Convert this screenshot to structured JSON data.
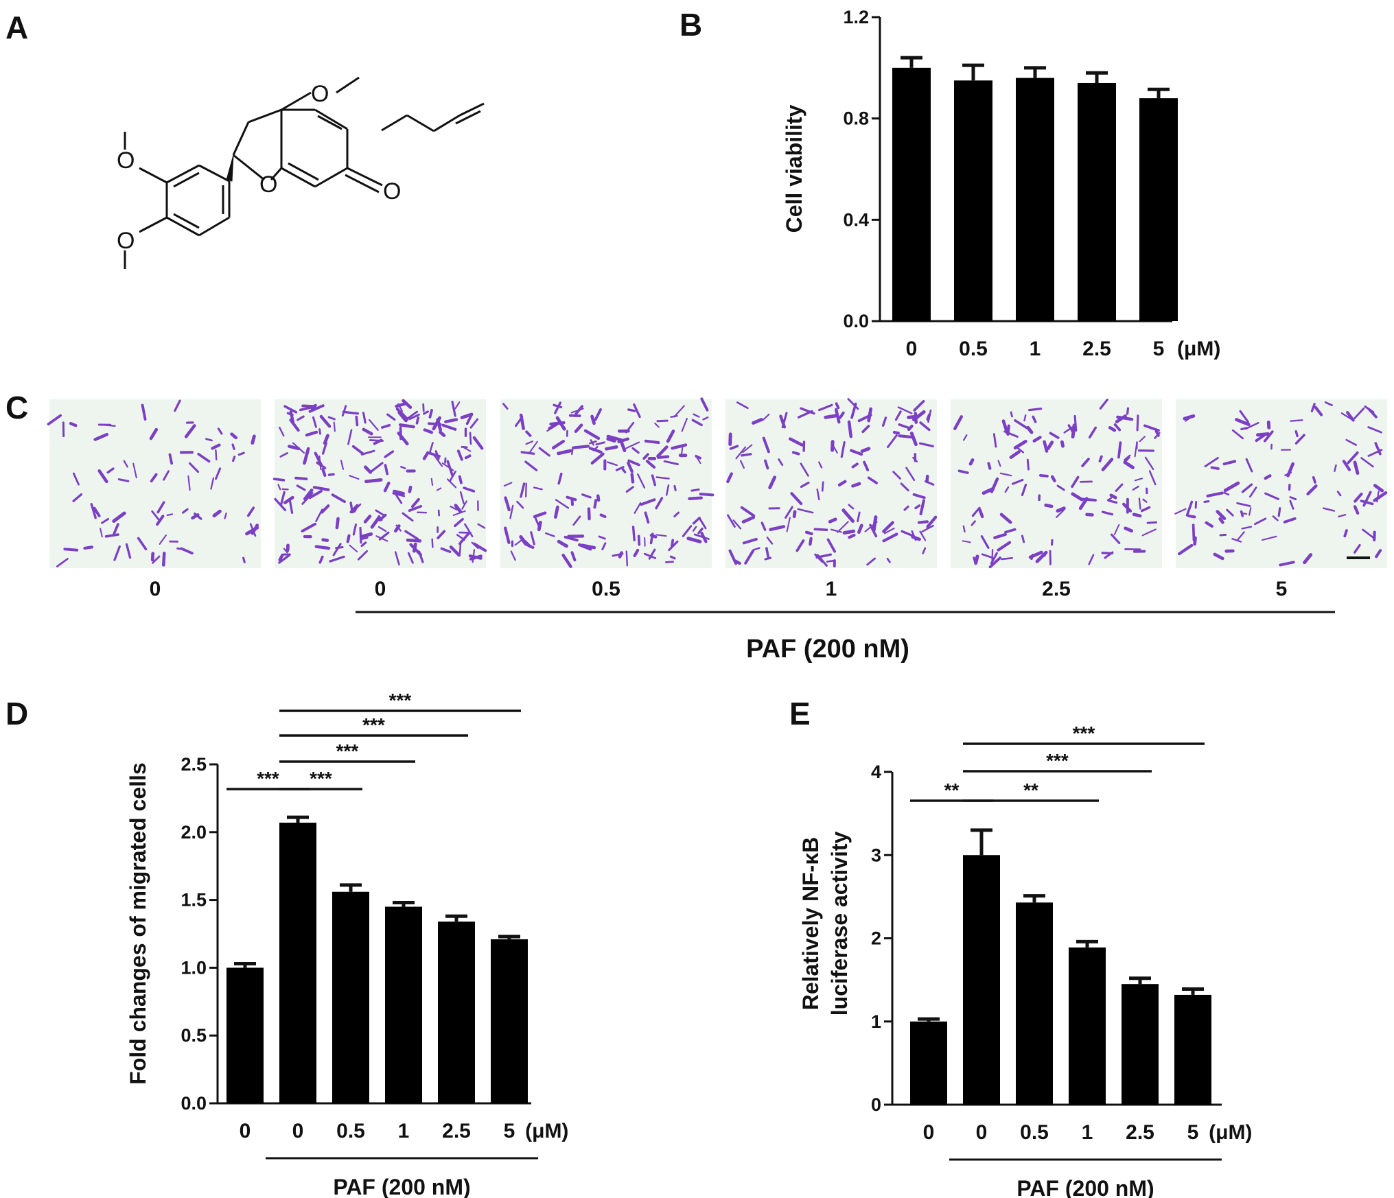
{
  "panels": {
    "A": "A",
    "B": "B",
    "C": "C",
    "D": "D",
    "E": "E"
  },
  "molecule": {
    "atoms": {
      "o_top": "O",
      "o_ring": "O",
      "o_keto": "O",
      "o_meo1": "O",
      "o_meo2": "O"
    }
  },
  "panel_c": {
    "labels": [
      "0",
      "0",
      "0.5",
      "1",
      "2.5",
      "5"
    ],
    "group_label": "PAF (200 nM)",
    "stain_color": "#7b3fc4",
    "background_color": "#eef5ee"
  },
  "chart_data": [
    {
      "panel": "B",
      "type": "bar",
      "categories": [
        "0",
        "0.5",
        "1",
        "2.5",
        "5"
      ],
      "unit": "(μM)",
      "values": [
        1.0,
        0.95,
        0.96,
        0.94,
        0.88
      ],
      "errors": [
        0.04,
        0.06,
        0.04,
        0.04,
        0.035
      ],
      "ylabel": "Cell viability",
      "ylim": [
        0,
        1.2
      ],
      "yticks": [
        "0.0",
        "0.4",
        "0.8",
        "1.2"
      ],
      "bar_color": "#000000"
    },
    {
      "panel": "D",
      "type": "bar",
      "categories": [
        "0",
        "0",
        "0.5",
        "1",
        "2.5",
        "5"
      ],
      "unit": "(μM)",
      "values": [
        1.0,
        2.07,
        1.56,
        1.45,
        1.34,
        1.21
      ],
      "errors": [
        0.03,
        0.04,
        0.05,
        0.03,
        0.04,
        0.02
      ],
      "ylabel": "Fold changes of migrated cells",
      "ylim": [
        0,
        2.5
      ],
      "yticks": [
        "0.0",
        "0.5",
        "1.0",
        "1.5",
        "2.0",
        "2.5"
      ],
      "group_label": "PAF (200 nM)",
      "significance": [
        {
          "from": 0,
          "to": 1,
          "label": "***"
        },
        {
          "from": 1,
          "to": 2,
          "label": "***"
        },
        {
          "from": 1,
          "to": 3,
          "label": "***"
        },
        {
          "from": 1,
          "to": 4,
          "label": "***"
        },
        {
          "from": 1,
          "to": 5,
          "label": "***"
        }
      ],
      "bar_color": "#000000"
    },
    {
      "panel": "E",
      "type": "bar",
      "categories": [
        "0",
        "0",
        "0.5",
        "1",
        "2.5",
        "5"
      ],
      "unit": "(μM)",
      "values": [
        1.0,
        3.0,
        2.43,
        1.89,
        1.45,
        1.32
      ],
      "errors": [
        0.03,
        0.3,
        0.08,
        0.07,
        0.07,
        0.07
      ],
      "ylabel_lines": [
        "Relatively NF-κB",
        "luciferase activity"
      ],
      "ylim": [
        0,
        4
      ],
      "yticks": [
        "0",
        "1",
        "2",
        "3",
        "4"
      ],
      "group_label": "PAF (200 nM)",
      "significance": [
        {
          "from": 0,
          "to": 1,
          "label": "**"
        },
        {
          "from": 1,
          "to": 3,
          "label": "**"
        },
        {
          "from": 1,
          "to": 4,
          "label": "***"
        },
        {
          "from": 1,
          "to": 5,
          "label": "***"
        }
      ],
      "bar_color": "#000000"
    }
  ]
}
